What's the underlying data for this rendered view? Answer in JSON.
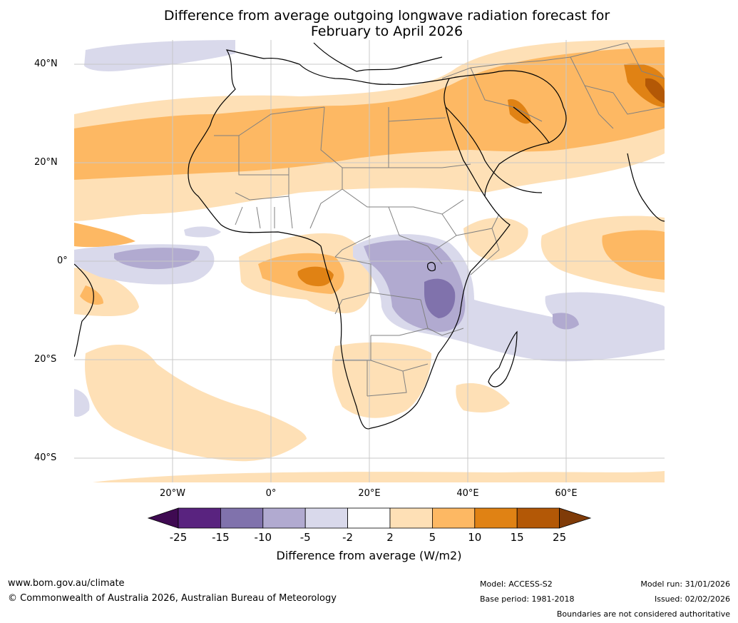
{
  "title": {
    "line1": "Difference from average outgoing longwave radiation forecast for",
    "line2": "February to April 2026"
  },
  "map": {
    "lat_labels": [
      "40°N",
      "20°N",
      "0°",
      "20°S",
      "40°S"
    ],
    "lon_labels": [
      "20°W",
      "0°",
      "20°E",
      "40°E",
      "60°E"
    ],
    "colors": {
      "land_border": "#808080",
      "coast": "#000000",
      "grid": "#c8c8c8"
    }
  },
  "colorbar": {
    "label": "Difference from average (W/m2)",
    "ticks": [
      "-25",
      "-15",
      "-10",
      "-5",
      "-2",
      "2",
      "5",
      "10",
      "15",
      "25"
    ],
    "colors": [
      "#3f0a52",
      "#59237f",
      "#8072ac",
      "#b1aad0",
      "#d9d9eb",
      "#ffffff",
      "#fee0b6",
      "#fdb863",
      "#e08214",
      "#b35806",
      "#7f3b08"
    ]
  },
  "footer": {
    "website": "www.bom.gov.au/climate",
    "copyright": "© Commonwealth of Australia 2026, Australian Bureau of Meteorology",
    "model": "Model: ACCESS-S2",
    "base_period": "Base period: 1981-2018",
    "model_run": "Model run: 31/01/2026",
    "issued": "Issued: 02/02/2026",
    "disclaimer": "Boundaries are not considered authoritative"
  }
}
